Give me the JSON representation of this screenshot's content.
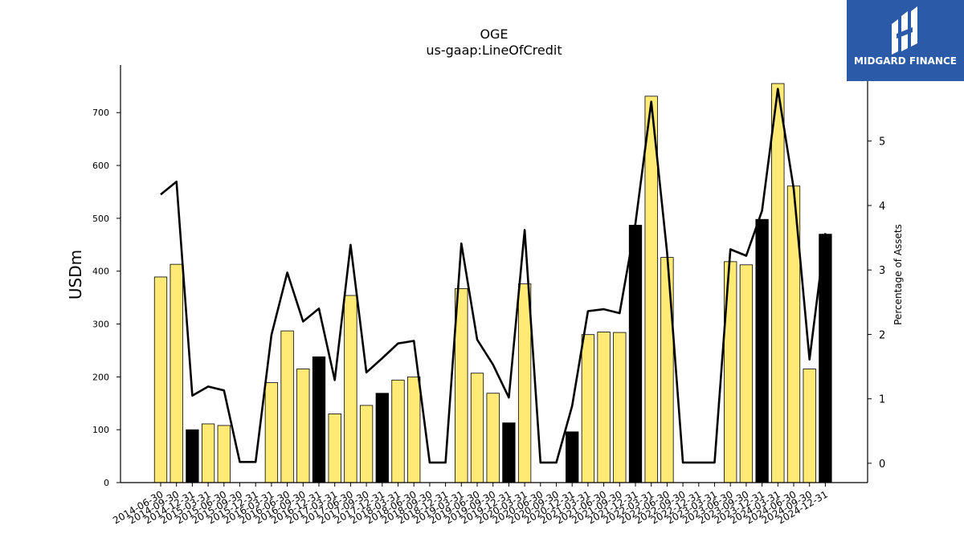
{
  "brand": {
    "name": "MIDGARD FINANCE",
    "bg_color": "#2b5ba8",
    "icon": "midgard-logo-icon"
  },
  "chart_data": {
    "type": "bar",
    "title": "OGE",
    "subtitle": "us-gaap:LineOfCredit",
    "ylabel": "USDm",
    "y2label": "Percentage of Assets",
    "ylim": [
      0,
      790
    ],
    "y2lim": [
      -0.3,
      6.18
    ],
    "yticks": [
      0,
      100,
      200,
      300,
      400,
      500,
      600,
      700
    ],
    "y2ticks": [
      0,
      1,
      2,
      3,
      4,
      5
    ],
    "grid": false,
    "colors": {
      "bar_default": "#ffea75",
      "bar_highlight": "#000000",
      "line": "#000000"
    },
    "categories": [
      "2014-06-30",
      "2014-09-30",
      "2014-12-31",
      "2015-03-31",
      "2015-06-30",
      "2015-09-30",
      "2015-12-31",
      "2016-03-31",
      "2016-06-30",
      "2016-09-30",
      "2016-12-31",
      "2017-03-31",
      "2017-06-30",
      "2017-09-30",
      "2017-12-31",
      "2018-03-31",
      "2018-06-30",
      "2018-09-30",
      "2018-12-31",
      "2019-03-31",
      "2019-06-30",
      "2019-09-30",
      "2019-12-31",
      "2020-03-31",
      "2020-06-30",
      "2020-09-30",
      "2020-12-31",
      "2021-03-31",
      "2021-06-30",
      "2021-09-30",
      "2021-12-31",
      "2022-03-31",
      "2022-06-30",
      "2022-09-30",
      "2022-12-31",
      "2023-03-31",
      "2023-06-30",
      "2023-09-30",
      "2023-12-31",
      "2024-03-31",
      "2024-06-30",
      "2024-09-30",
      "2024-12-31"
    ],
    "series": [
      {
        "kind": "bar",
        "values": [
          389,
          413,
          100,
          111,
          108,
          0,
          0,
          189,
          287,
          215,
          238,
          130,
          354,
          146,
          169,
          194,
          200,
          0,
          0,
          367,
          207,
          169,
          113,
          376,
          0,
          0,
          96,
          280,
          285,
          284,
          487,
          731,
          426,
          0,
          0,
          0,
          418,
          412,
          498,
          755,
          561,
          215,
          470
        ],
        "highlight": [
          false,
          false,
          true,
          false,
          false,
          false,
          false,
          false,
          false,
          false,
          true,
          false,
          false,
          false,
          true,
          false,
          false,
          false,
          false,
          false,
          false,
          false,
          true,
          false,
          false,
          false,
          true,
          false,
          false,
          false,
          true,
          false,
          false,
          false,
          false,
          false,
          false,
          false,
          true,
          false,
          false,
          false,
          true
        ]
      },
      {
        "kind": "line",
        "axis": "right",
        "values": [
          4.17,
          4.37,
          1.05,
          1.19,
          1.13,
          0.02,
          0.02,
          1.99,
          2.96,
          2.2,
          2.4,
          1.29,
          3.39,
          1.41,
          1.63,
          1.86,
          1.9,
          0.01,
          0.01,
          3.41,
          1.92,
          1.53,
          1.02,
          3.62,
          0.01,
          0.01,
          0.89,
          2.36,
          2.39,
          2.33,
          3.72,
          5.61,
          3.27,
          0.01,
          0.01,
          0.01,
          3.32,
          3.22,
          3.92,
          5.81,
          4.26,
          1.61,
          3.57
        ]
      }
    ]
  }
}
